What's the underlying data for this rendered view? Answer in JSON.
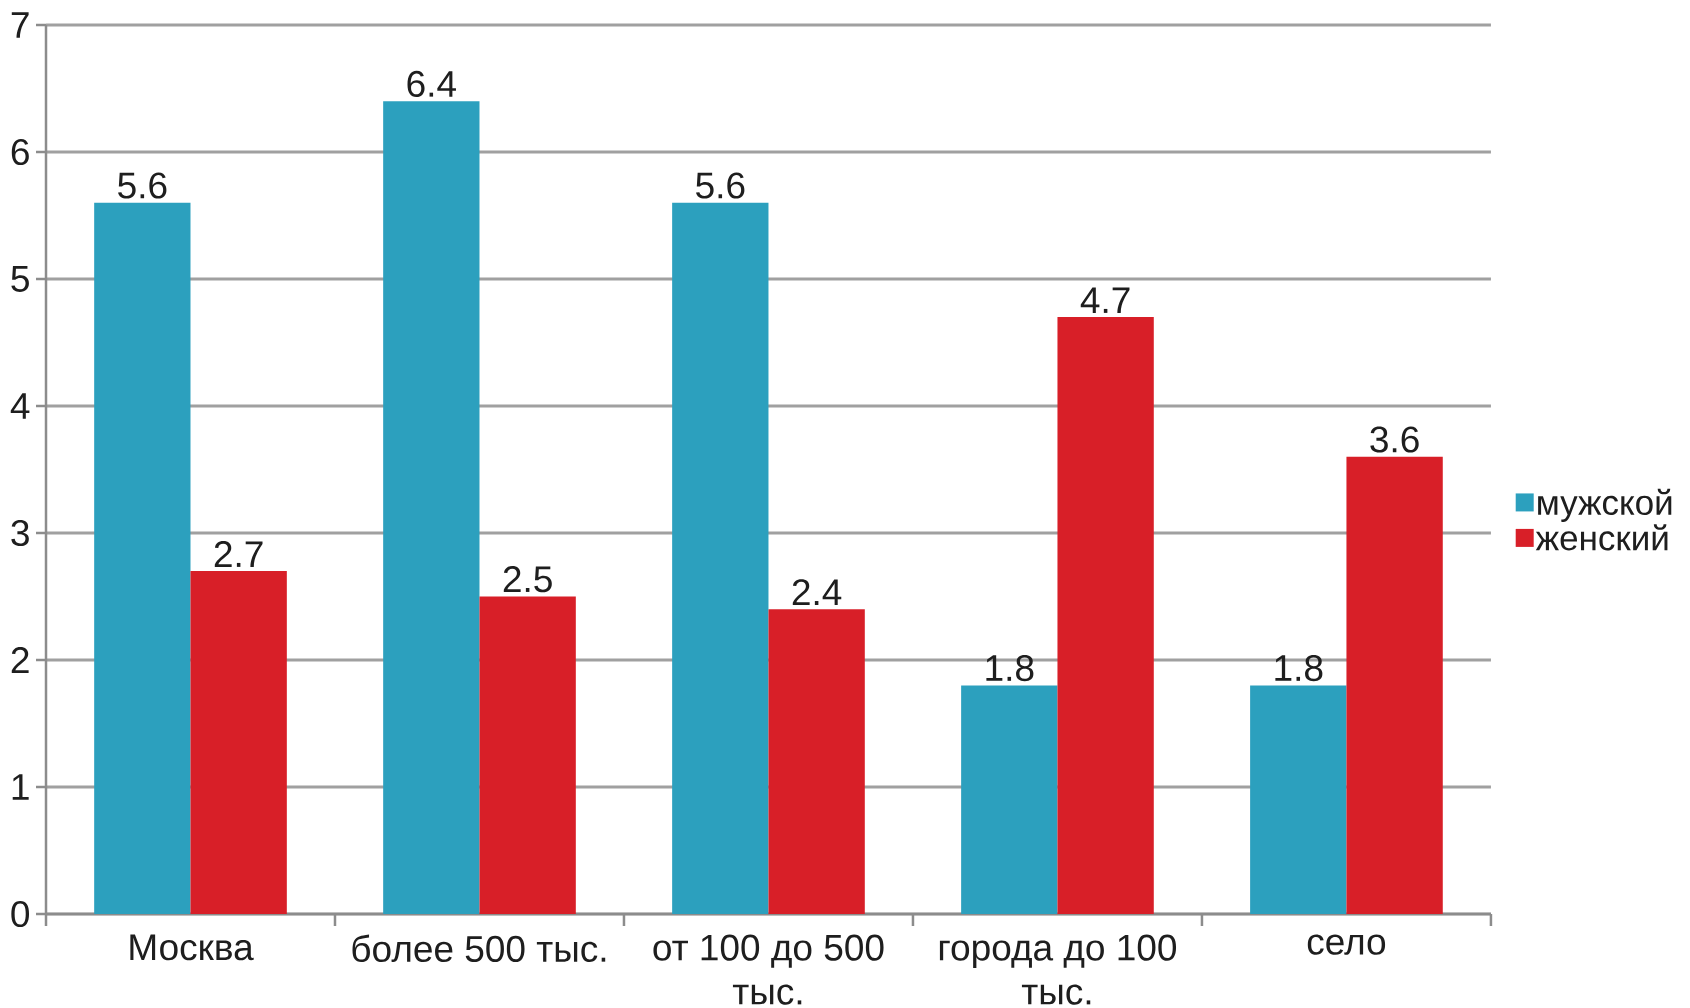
{
  "chart_data": {
    "type": "bar",
    "categories": [
      "Москва",
      "более 500 тыс.",
      "от 100 до 500 тыс.",
      "города до 100 тыс.",
      "село"
    ],
    "series": [
      {
        "name": "мужской",
        "color": "#2ca0be",
        "values": [
          5.6,
          6.4,
          5.6,
          1.8,
          1.8
        ]
      },
      {
        "name": "женский",
        "color": "#d81f28",
        "values": [
          2.7,
          2.5,
          2.4,
          4.7,
          3.6
        ]
      }
    ],
    "ylim": [
      0,
      7
    ],
    "yticks": [
      0,
      1,
      2,
      3,
      4,
      5,
      6,
      7
    ],
    "grid": "y",
    "legend": "right",
    "data_labels": true
  }
}
